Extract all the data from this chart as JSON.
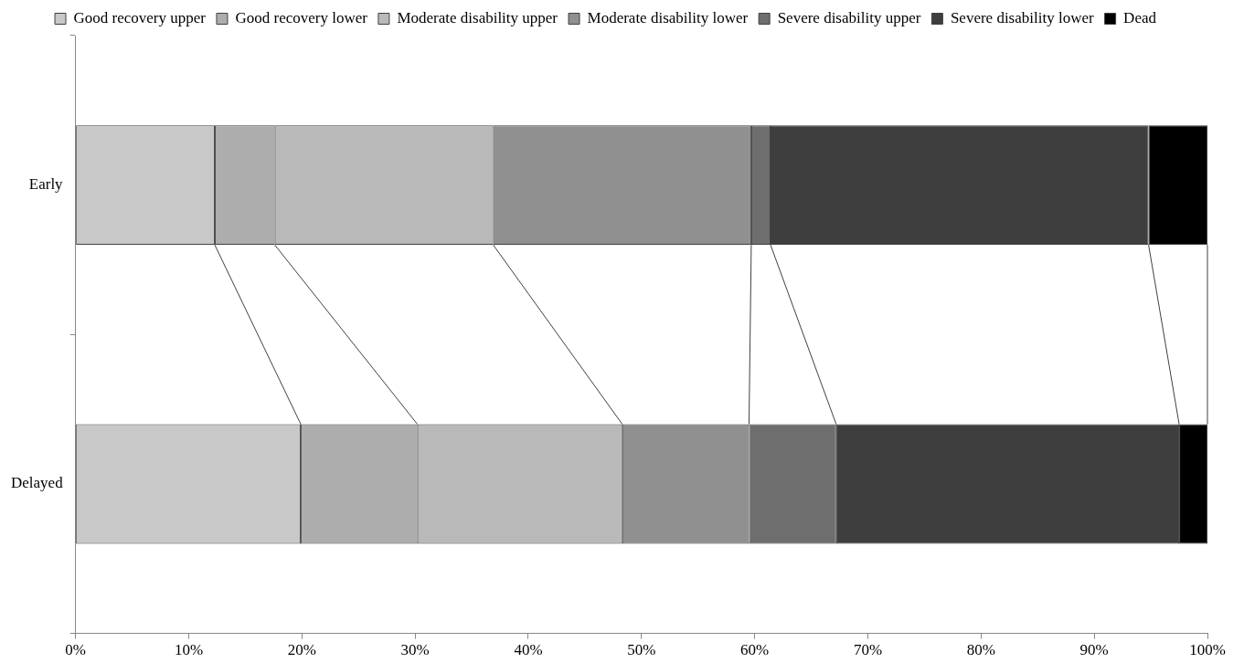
{
  "chart_data": {
    "type": "bar",
    "orientation": "horizontal",
    "stacked": true,
    "categories": [
      "Early",
      "Delayed"
    ],
    "series": [
      {
        "name": "Good recovery upper",
        "color": "#c8c8c8",
        "values": [
          12.3,
          19.9
        ]
      },
      {
        "name": "Good recovery lower",
        "color": "#adadad",
        "values": [
          5.3,
          10.3
        ]
      },
      {
        "name": "Moderate disability upper",
        "color": "#b9b9b9",
        "values": [
          19.3,
          18.1
        ]
      },
      {
        "name": "Moderate disability lower",
        "color": "#909090",
        "values": [
          22.8,
          11.2
        ]
      },
      {
        "name": "Severe disability upper",
        "color": "#6e6e6e",
        "values": [
          1.7,
          7.7
        ]
      },
      {
        "name": "Severe disability lower",
        "color": "#3e3e3e",
        "values": [
          33.4,
          30.3
        ]
      },
      {
        "name": "Dead",
        "color": "#000000",
        "values": [
          5.2,
          2.5
        ]
      }
    ],
    "xlim": [
      0,
      100
    ],
    "xticks": [
      {
        "value": 0,
        "label": "0%"
      },
      {
        "value": 10,
        "label": "10%"
      },
      {
        "value": 20,
        "label": "20%"
      },
      {
        "value": 30,
        "label": "30%"
      },
      {
        "value": 40,
        "label": "40%"
      },
      {
        "value": 50,
        "label": "50%"
      },
      {
        "value": 60,
        "label": "60%"
      },
      {
        "value": 70,
        "label": "70%"
      },
      {
        "value": 80,
        "label": "80%"
      },
      {
        "value": 90,
        "label": "90%"
      },
      {
        "value": 100,
        "label": "100%"
      }
    ],
    "grid": false,
    "legend": "top"
  }
}
